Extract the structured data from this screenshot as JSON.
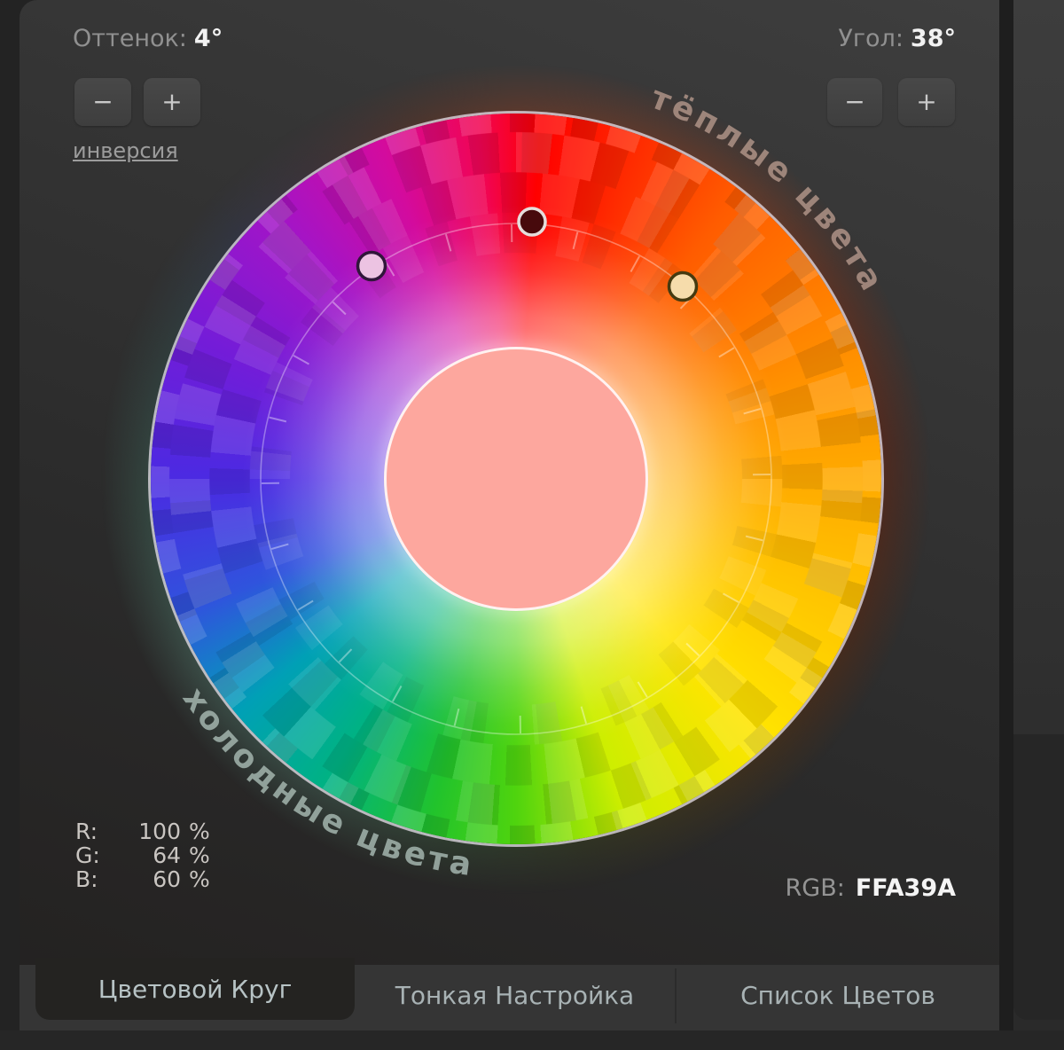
{
  "hue_control": {
    "label": "Оттенок:",
    "value": "4°",
    "minus": "−",
    "plus": "+",
    "invert_link": "инверсия"
  },
  "angle_control": {
    "label": "Угол:",
    "value": "38°",
    "minus": "−",
    "plus": "+"
  },
  "wheel": {
    "warm_label": "тёплые цвета",
    "cold_label": "холодные цвета",
    "hue_deg": 4,
    "angle_deg": 38,
    "selected_color_hex": "FFA39A",
    "markers": [
      {
        "name": "main-hue",
        "fill": "#470a0c",
        "stroke": "#e5dddb"
      },
      {
        "name": "plus-angle",
        "fill": "#f6dcab",
        "stroke": "#453a10"
      },
      {
        "name": "minus-angle",
        "fill": "#ecc3e2",
        "stroke": "#30163a"
      }
    ]
  },
  "readout": {
    "rows": [
      {
        "label": "R:",
        "value": "100",
        "unit": "%"
      },
      {
        "label": "G:",
        "value": "64",
        "unit": "%"
      },
      {
        "label": "B:",
        "value": "60",
        "unit": "%"
      }
    ],
    "hex_label": "RGB:",
    "hex_value": "FFA39A"
  },
  "tabs": [
    {
      "label": "Цветовой Круг",
      "active": true
    },
    {
      "label": "Тонкая Настройка",
      "active": false
    },
    {
      "label": "Список Цветов",
      "active": false
    }
  ]
}
